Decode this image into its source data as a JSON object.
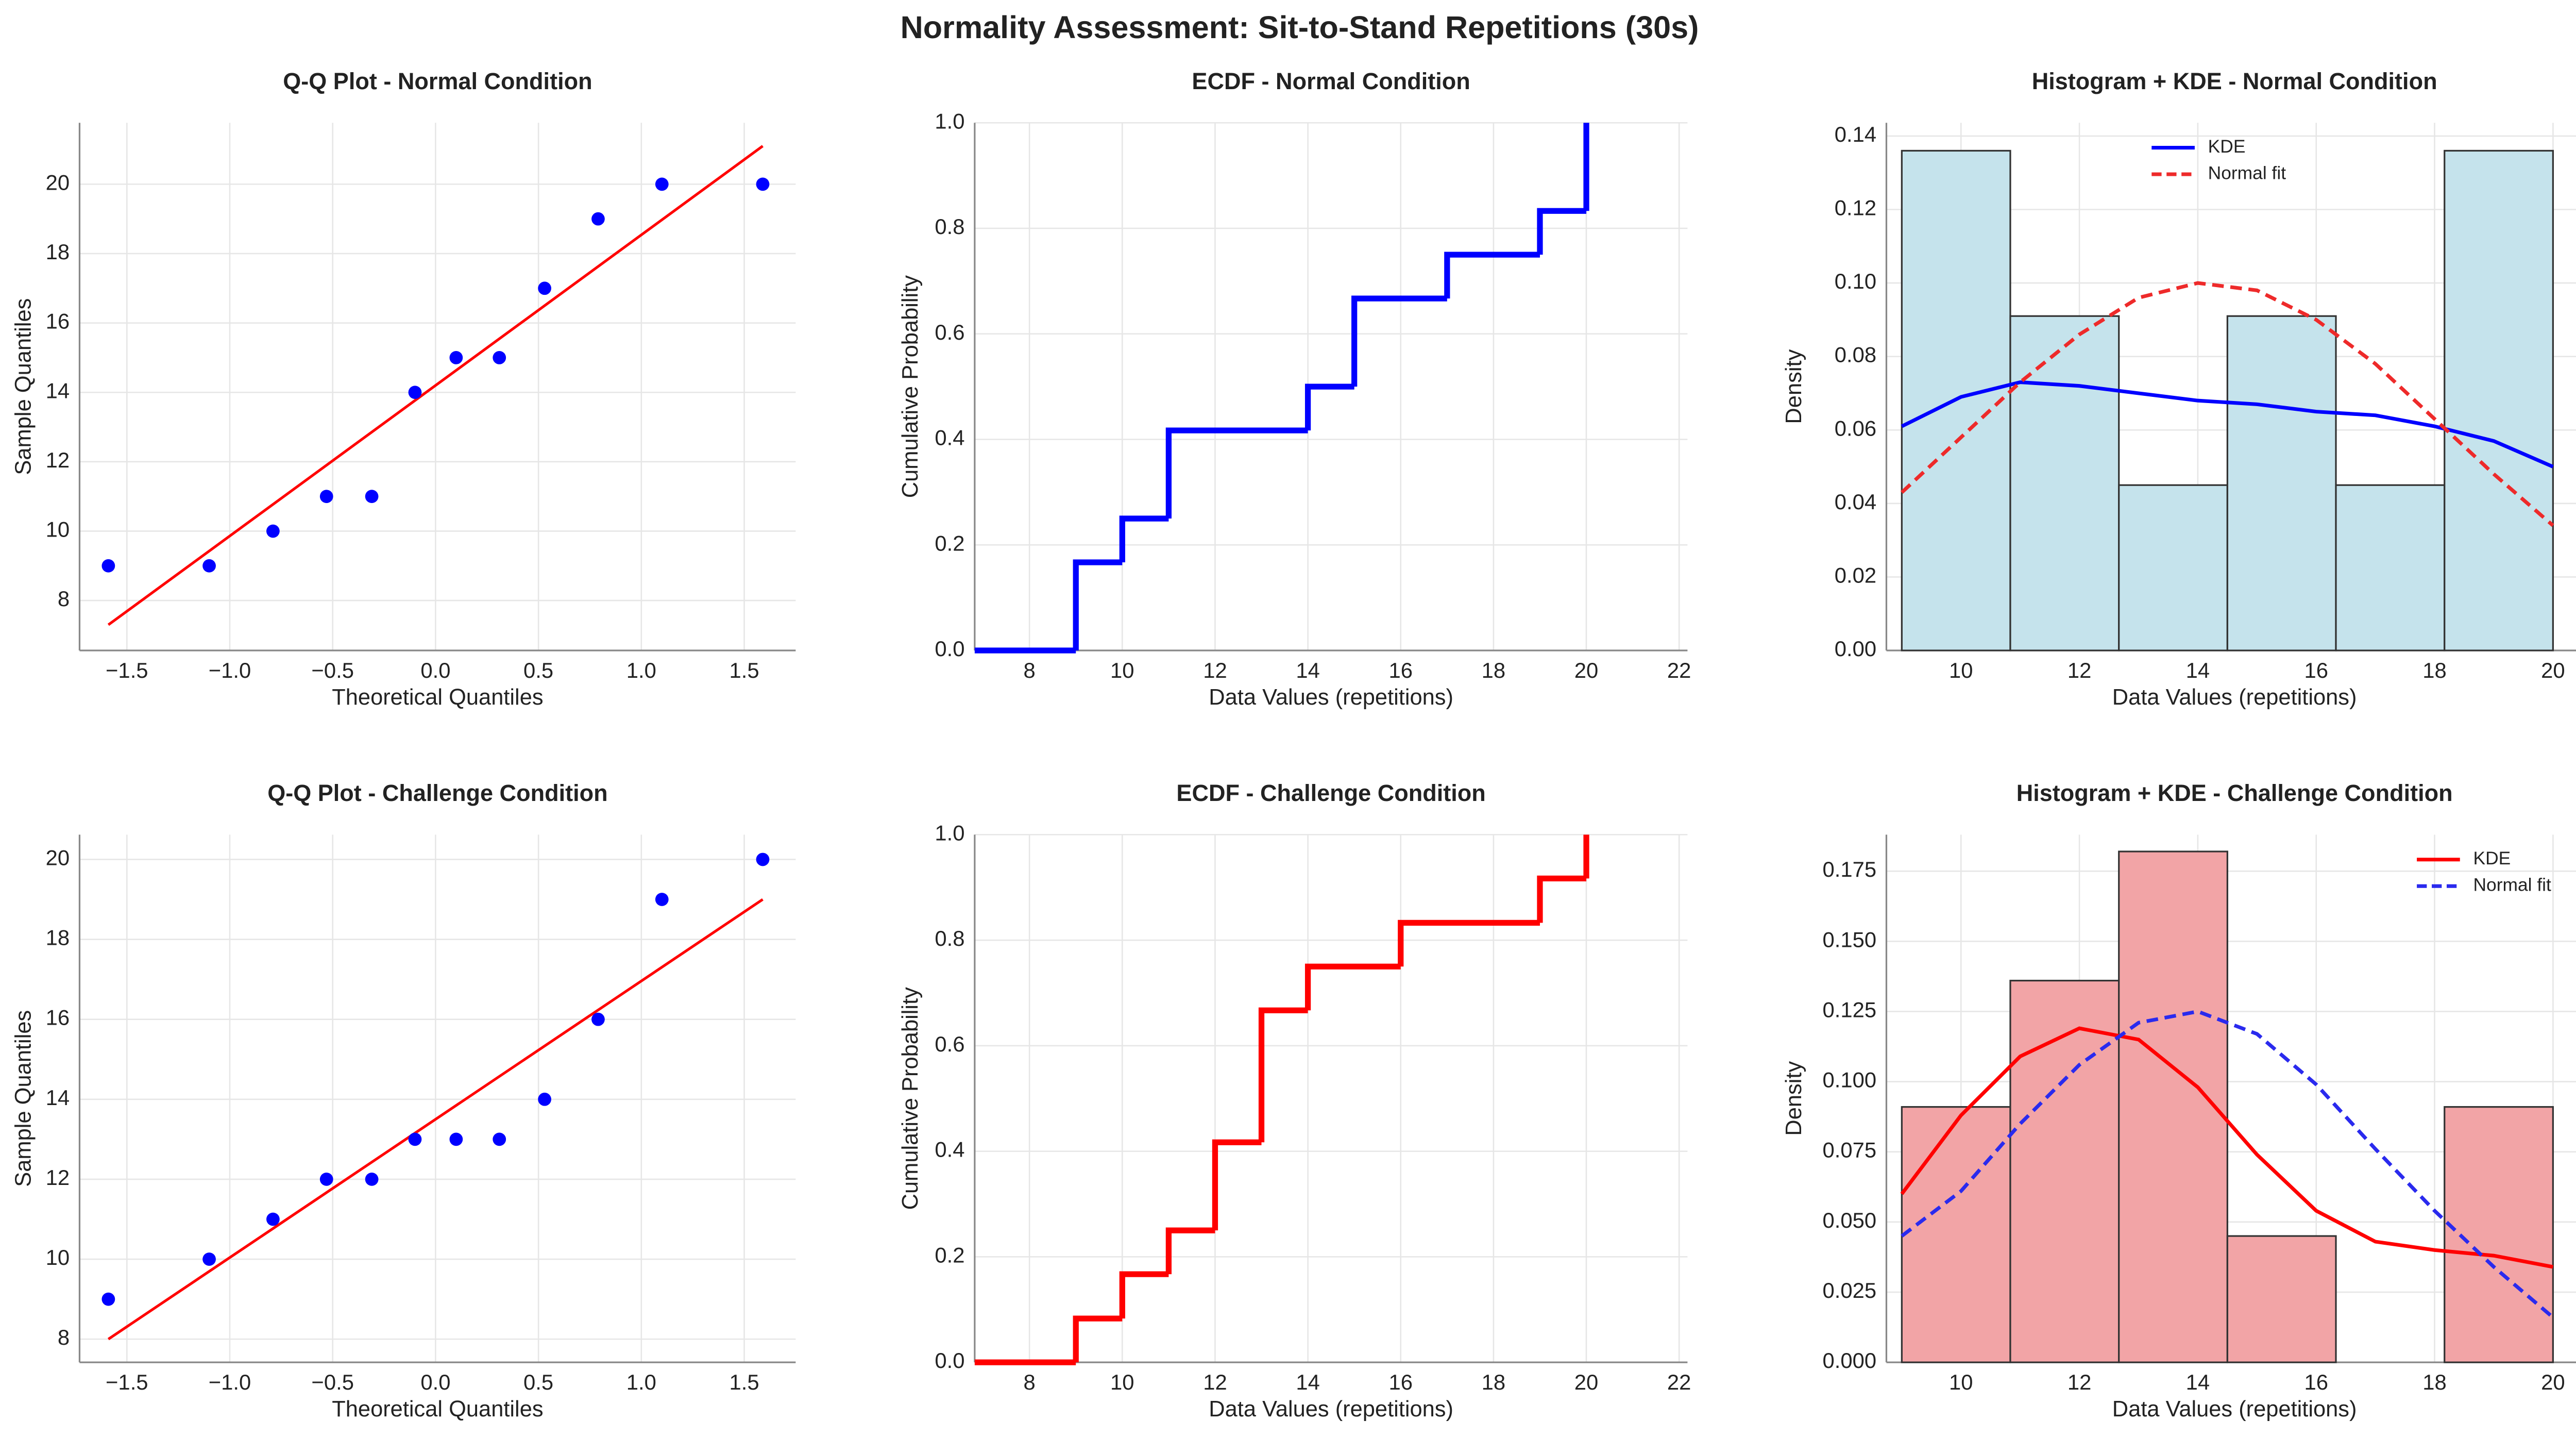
{
  "title": "Normality Assessment: Sit-to-Stand Repetitions (30s)",
  "chart_data": [
    {
      "type": "scatter",
      "title": "Q-Q Plot - Normal Condition",
      "xlabel": "Theoretical Quantiles",
      "ylabel": "Sample Quantiles",
      "x": [
        -1.59,
        -1.1,
        -0.79,
        -0.53,
        -0.31,
        -0.1,
        0.1,
        0.31,
        0.53,
        0.79,
        1.1,
        1.59
      ],
      "values": [
        9,
        9,
        10,
        11,
        11,
        14,
        15,
        15,
        17,
        19,
        20,
        20
      ],
      "color": "#0000ff",
      "fit_line": {
        "x": [
          -1.59,
          1.59
        ],
        "values": [
          7.3,
          21.1
        ],
        "color": "#ff0000"
      },
      "xlim": [
        -1.73,
        1.75
      ],
      "ylim": [
        6.56,
        21.77
      ],
      "xticks": [
        {
          "value": -1.5,
          "label": "−1.5"
        },
        {
          "value": -1.0,
          "label": "−1.0"
        },
        {
          "value": -0.5,
          "label": "−0.5"
        },
        {
          "value": 0,
          "label": "0.0"
        },
        {
          "value": 0.5,
          "label": "0.5"
        },
        {
          "value": 1.0,
          "label": "1.0"
        },
        {
          "value": 1.5,
          "label": "1.5"
        }
      ],
      "yticks": [
        8,
        10,
        12,
        14,
        16,
        18,
        20
      ],
      "grid": true
    },
    {
      "type": "step",
      "title": "ECDF - Normal Condition",
      "xlabel": "Data Values (repetitions)",
      "ylabel": "Cumulative Probability",
      "x": [
        9,
        10,
        11,
        14,
        15,
        17,
        19,
        20
      ],
      "values": [
        0.167,
        0.25,
        0.417,
        0.5,
        0.667,
        0.75,
        0.833,
        1.0
      ],
      "color": "#0000ff",
      "xlim": [
        6.82,
        22.18
      ],
      "ylim": [
        0,
        1
      ],
      "xticks": [
        8,
        10,
        12,
        14,
        16,
        18,
        20,
        22
      ],
      "yticks": [
        {
          "value": 0,
          "label": "0.0"
        },
        {
          "value": 0.2,
          "label": "0.2"
        },
        {
          "value": 0.4,
          "label": "0.4"
        },
        {
          "value": 0.6,
          "label": "0.6"
        },
        {
          "value": 0.8,
          "label": "0.8"
        },
        {
          "value": 1,
          "label": "1.0"
        }
      ],
      "grid": true
    },
    {
      "type": "histogram",
      "title": "Histogram + KDE - Normal Condition",
      "xlabel": "Data Values (repetitions)",
      "ylabel": "Density",
      "bins": [
        9,
        10.833,
        12.667,
        14.5,
        16.333,
        18.167,
        20
      ],
      "values": [
        0.136,
        0.091,
        0.045,
        0.091,
        0.045,
        0.136
      ],
      "color": "#c5e3ec",
      "series": [
        {
          "name": "KDE",
          "color": "#0000ff",
          "dashed": false,
          "x": [
            9,
            10,
            11,
            12,
            13,
            14,
            15,
            16,
            17,
            18,
            19,
            20
          ],
          "values": [
            0.061,
            0.069,
            0.073,
            0.072,
            0.07,
            0.068,
            0.067,
            0.065,
            0.064,
            0.061,
            0.057,
            0.05
          ]
        },
        {
          "name": "Normal fit",
          "color": "#ee2a2a",
          "dashed": true,
          "x": [
            9,
            10,
            11,
            12,
            13,
            14,
            15,
            16,
            17,
            18,
            19,
            20
          ],
          "values": [
            0.043,
            0.058,
            0.073,
            0.086,
            0.096,
            0.1,
            0.098,
            0.09,
            0.078,
            0.063,
            0.048,
            0.034
          ]
        }
      ],
      "legend": "upper center",
      "xlim": [
        8.74,
        20.5
      ],
      "ylim": [
        0,
        0.1436
      ],
      "xticks": [
        10,
        12,
        14,
        16,
        18,
        20
      ],
      "yticks": [
        {
          "value": 0,
          "label": "0.00"
        },
        {
          "value": 0.02,
          "label": "0.02"
        },
        {
          "value": 0.04,
          "label": "0.04"
        },
        {
          "value": 0.06,
          "label": "0.06"
        },
        {
          "value": 0.08,
          "label": "0.08"
        },
        {
          "value": 0.1,
          "label": "0.10"
        },
        {
          "value": 0.12,
          "label": "0.12"
        },
        {
          "value": 0.14,
          "label": "0.14"
        }
      ],
      "grid": true
    },
    {
      "type": "scatter",
      "title": "Q-Q Plot - Challenge Condition",
      "xlabel": "Theoretical Quantiles",
      "ylabel": "Sample Quantiles",
      "x": [
        -1.59,
        -1.1,
        -0.79,
        -0.53,
        -0.31,
        -0.1,
        0.1,
        0.31,
        0.53,
        0.79,
        1.1,
        1.59
      ],
      "values": [
        9,
        10,
        11,
        12,
        12,
        13,
        13,
        13,
        14,
        16,
        19,
        20
      ],
      "color": "#0000ff",
      "fit_line": {
        "x": [
          -1.59,
          1.59
        ],
        "values": [
          8.0,
          19.0
        ],
        "color": "#ff0000"
      },
      "xlim": [
        -1.73,
        1.75
      ],
      "ylim": [
        7.42,
        20.62
      ],
      "xticks": [
        {
          "value": -1.5,
          "label": "−1.5"
        },
        {
          "value": -1.0,
          "label": "−1.0"
        },
        {
          "value": -0.5,
          "label": "−0.5"
        },
        {
          "value": 0,
          "label": "0.0"
        },
        {
          "value": 0.5,
          "label": "0.5"
        },
        {
          "value": 1.0,
          "label": "1.0"
        },
        {
          "value": 1.5,
          "label": "1.5"
        }
      ],
      "yticks": [
        8,
        10,
        12,
        14,
        16,
        18,
        20
      ],
      "grid": true
    },
    {
      "type": "step",
      "title": "ECDF - Challenge Condition",
      "xlabel": "Data Values (repetitions)",
      "ylabel": "Cumulative Probability",
      "x": [
        9,
        10,
        11,
        12,
        13,
        14,
        16,
        19,
        20
      ],
      "values": [
        0.083,
        0.167,
        0.25,
        0.417,
        0.667,
        0.75,
        0.833,
        0.917,
        1.0
      ],
      "color": "#ff0000",
      "xlim": [
        6.82,
        22.18
      ],
      "ylim": [
        0,
        1
      ],
      "xticks": [
        8,
        10,
        12,
        14,
        16,
        18,
        20,
        22
      ],
      "yticks": [
        {
          "value": 0,
          "label": "0.0"
        },
        {
          "value": 0.2,
          "label": "0.2"
        },
        {
          "value": 0.4,
          "label": "0.4"
        },
        {
          "value": 0.6,
          "label": "0.6"
        },
        {
          "value": 0.8,
          "label": "0.8"
        },
        {
          "value": 1,
          "label": "1.0"
        }
      ],
      "grid": true
    },
    {
      "type": "histogram",
      "title": "Histogram + KDE - Challenge Condition",
      "xlabel": "Data Values (repetitions)",
      "ylabel": "Density",
      "bins": [
        9,
        10.833,
        12.667,
        14.5,
        16.333,
        18.167,
        20
      ],
      "values": [
        0.091,
        0.136,
        0.182,
        0.045,
        0,
        0.091
      ],
      "color": "#f2a4a6",
      "series": [
        {
          "name": "KDE",
          "color": "#ff0000",
          "dashed": false,
          "x": [
            9,
            10,
            11,
            12,
            13,
            14,
            15,
            16,
            17,
            18,
            19,
            20
          ],
          "values": [
            0.06,
            0.088,
            0.109,
            0.119,
            0.115,
            0.098,
            0.074,
            0.054,
            0.043,
            0.04,
            0.038,
            0.034
          ]
        },
        {
          "name": "Normal fit",
          "color": "#2a2aee",
          "dashed": true,
          "x": [
            9,
            10,
            11,
            12,
            13,
            14,
            15,
            16,
            17,
            18,
            19,
            20
          ],
          "values": [
            0.045,
            0.061,
            0.085,
            0.106,
            0.121,
            0.125,
            0.117,
            0.099,
            0.076,
            0.054,
            0.034,
            0.016
          ]
        }
      ],
      "legend": "upper right",
      "xlim": [
        8.74,
        20.5
      ],
      "ylim": [
        0,
        0.188
      ],
      "xticks": [
        10,
        12,
        14,
        16,
        18,
        20
      ],
      "yticks": [
        {
          "value": 0,
          "label": "0.000"
        },
        {
          "value": 0.025,
          "label": "0.025"
        },
        {
          "value": 0.05,
          "label": "0.050"
        },
        {
          "value": 0.075,
          "label": "0.075"
        },
        {
          "value": 0.1,
          "label": "0.100"
        },
        {
          "value": 0.125,
          "label": "0.125"
        },
        {
          "value": 0.15,
          "label": "0.150"
        },
        {
          "value": 0.175,
          "label": "0.175"
        }
      ],
      "grid": true
    }
  ]
}
